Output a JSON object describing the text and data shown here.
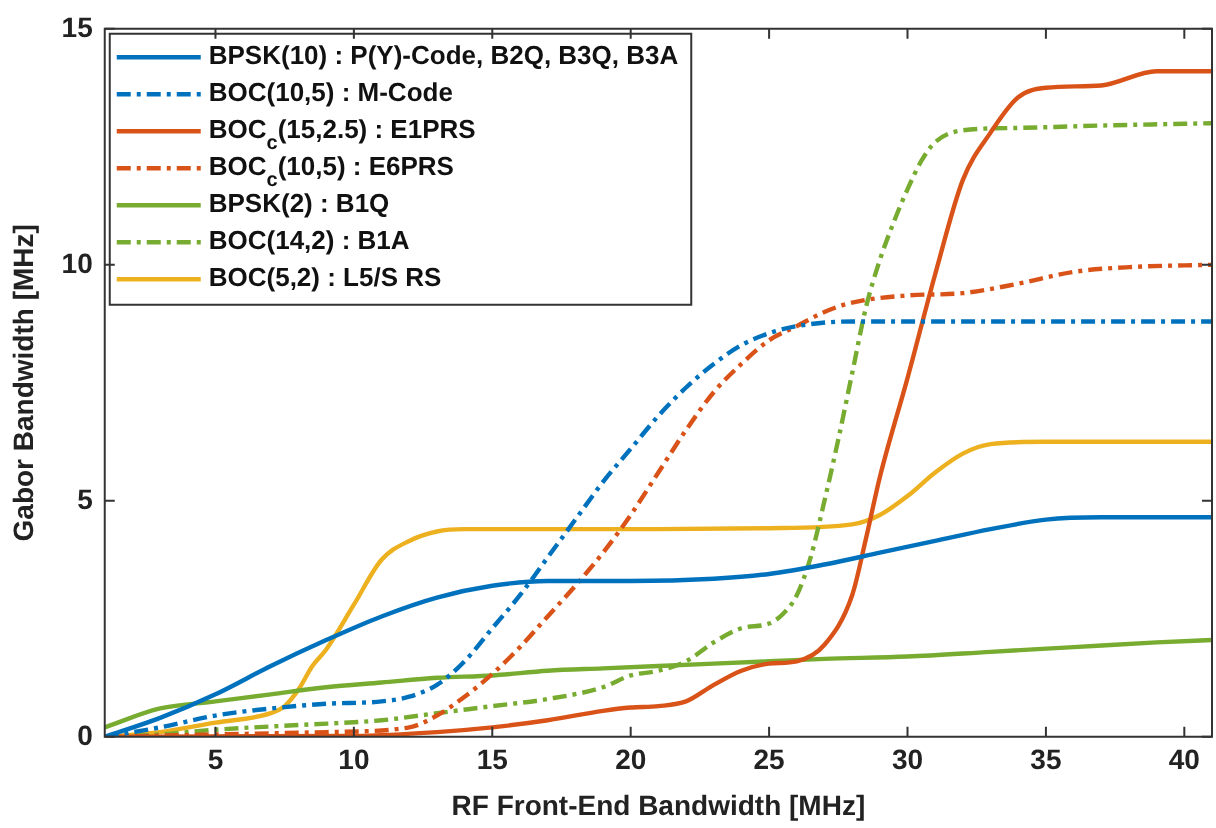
{
  "chart_data": {
    "type": "line",
    "xlabel": "RF Front-End Bandwidth [MHz]",
    "ylabel": "Gabor Bandwidth [MHz]",
    "xlim": [
      1,
      41
    ],
    "ylim": [
      0,
      15
    ],
    "xticks": [
      5,
      10,
      15,
      20,
      25,
      30,
      35,
      40
    ],
    "yticks": [
      0,
      5,
      10,
      15
    ],
    "grid": false,
    "legend": "top left",
    "marker": "none",
    "series": [
      {
        "name": "BPSK(10) : P(Y)-Code, B2Q, B3Q, B3A",
        "color": "#0072bd",
        "line_style": "solid",
        "x": [
          1,
          3,
          5,
          7,
          9,
          11,
          13,
          15,
          17,
          20,
          23,
          25,
          27,
          29,
          31,
          33,
          35,
          37,
          41
        ],
        "values": [
          0,
          0.4,
          0.9,
          1.5,
          2.05,
          2.55,
          2.95,
          3.2,
          3.3,
          3.3,
          3.35,
          3.45,
          3.65,
          3.9,
          4.15,
          4.4,
          4.6,
          4.65,
          4.65
        ]
      },
      {
        "name": "BOC(10,5) : M-Code",
        "color": "#0072bd",
        "line_style": "dashed",
        "x": [
          1,
          3,
          5,
          7,
          9,
          11,
          12,
          13,
          14,
          15,
          16,
          17,
          18,
          19,
          20,
          21,
          22,
          23,
          24,
          25,
          26,
          28,
          41
        ],
        "values": [
          0,
          0.2,
          0.45,
          0.6,
          0.7,
          0.75,
          0.85,
          1.1,
          1.6,
          2.3,
          3.0,
          3.8,
          4.6,
          5.4,
          6.1,
          6.8,
          7.4,
          7.9,
          8.3,
          8.55,
          8.7,
          8.8,
          8.8
        ]
      },
      {
        "name": "BOC$_{c}$(15,2.5) : E1PRS",
        "color": "#d95319",
        "line_style": "solid",
        "x": [
          1,
          10,
          13,
          15,
          17,
          19,
          20,
          21,
          22,
          23,
          24,
          25,
          26,
          27,
          28,
          28.5,
          29,
          30,
          31,
          32,
          33,
          34,
          35,
          37,
          39,
          41
        ],
        "values": [
          0,
          0.02,
          0.1,
          0.2,
          0.35,
          0.55,
          0.62,
          0.65,
          0.75,
          1.1,
          1.4,
          1.55,
          1.6,
          1.95,
          3.0,
          4.2,
          5.5,
          7.6,
          9.8,
          11.8,
          12.8,
          13.55,
          13.75,
          13.8,
          14.1,
          14.1
        ]
      },
      {
        "name": "BOC$_{c}$(10,5) : E6PRS",
        "color": "#d95319",
        "line_style": "dashed",
        "x": [
          1,
          5,
          9,
          12,
          13,
          14,
          15,
          16,
          17,
          18,
          19,
          20,
          21,
          22,
          23,
          24,
          25,
          26,
          27,
          28,
          30,
          32,
          34,
          36,
          38,
          41
        ],
        "values": [
          0,
          0.05,
          0.1,
          0.2,
          0.45,
          0.85,
          1.33,
          1.9,
          2.55,
          3.2,
          3.9,
          4.7,
          5.6,
          6.5,
          7.3,
          7.9,
          8.4,
          8.7,
          9.0,
          9.2,
          9.35,
          9.4,
          9.6,
          9.85,
          9.95,
          10.0
        ]
      },
      {
        "name": "BPSK(2) : B1Q",
        "color": "#77ac30",
        "line_style": "solid",
        "x": [
          1,
          3,
          5,
          7,
          9,
          11,
          13,
          15,
          17,
          19,
          21,
          25,
          27,
          30,
          33,
          36,
          39,
          41
        ],
        "values": [
          0.2,
          0.6,
          0.75,
          0.9,
          1.05,
          1.15,
          1.25,
          1.3,
          1.4,
          1.45,
          1.5,
          1.6,
          1.65,
          1.7,
          1.8,
          1.9,
          2.0,
          2.05
        ]
      },
      {
        "name": "BOC(14,2) : B1A",
        "color": "#77ac30",
        "line_style": "dashed",
        "x": [
          1,
          3,
          5,
          8,
          11,
          13,
          15,
          17,
          19,
          20,
          21,
          22,
          23,
          24,
          25,
          25.5,
          26,
          26.5,
          27,
          27.5,
          28,
          28.5,
          29,
          29.5,
          30,
          30.5,
          31,
          32,
          34,
          37,
          41
        ],
        "values": [
          0,
          0.05,
          0.15,
          0.25,
          0.35,
          0.5,
          0.65,
          0.8,
          1.05,
          1.3,
          1.4,
          1.6,
          2.0,
          2.3,
          2.4,
          2.6,
          3.0,
          3.8,
          5.0,
          6.3,
          7.7,
          9.1,
          10.1,
          10.9,
          11.6,
          12.2,
          12.6,
          12.85,
          12.9,
          12.95,
          13.0
        ]
      },
      {
        "name": "BOC(5,2) : L5/S RS",
        "color": "#edb120",
        "line_style": "solid",
        "x": [
          1,
          3,
          5,
          7,
          7.5,
          8,
          8.5,
          9,
          10,
          11,
          12,
          13,
          14,
          20,
          25,
          28,
          29,
          30,
          31,
          32,
          33,
          35,
          41
        ],
        "values": [
          0,
          0.1,
          0.3,
          0.5,
          0.65,
          1.0,
          1.5,
          1.85,
          2.8,
          3.75,
          4.15,
          4.35,
          4.4,
          4.4,
          4.42,
          4.5,
          4.7,
          5.1,
          5.6,
          6.0,
          6.2,
          6.25,
          6.25
        ]
      }
    ]
  }
}
